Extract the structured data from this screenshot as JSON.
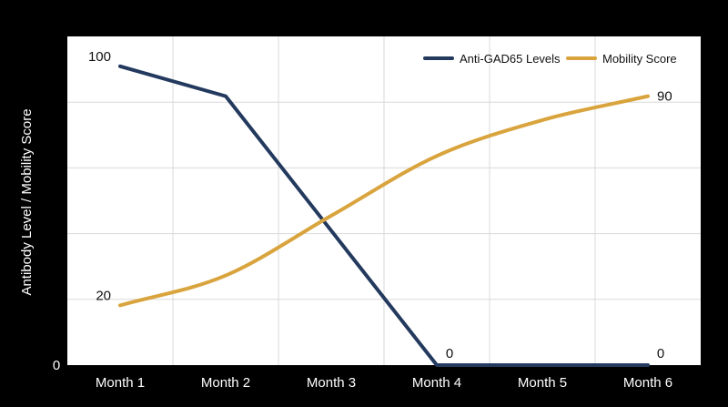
{
  "chart_data": {
    "type": "line",
    "title": "",
    "xlabel": "",
    "ylabel": "Antibody Level / Mobility Score",
    "categories": [
      "Month 1",
      "Month 2",
      "Month 3",
      "Month 4",
      "Month 5",
      "Month 6"
    ],
    "ylim": [
      0,
      110
    ],
    "y_tick_labels": [
      "0"
    ],
    "grid": true,
    "legend_position": "top-right",
    "series": [
      {
        "name": "Anti-GAD65 Levels",
        "values": [
          100,
          90,
          45,
          0,
          0,
          0
        ],
        "color": "#233a5e",
        "point_labels": [
          "100",
          "",
          "",
          "0",
          "",
          "0"
        ]
      },
      {
        "name": "Mobility Score",
        "values": [
          20,
          30,
          50,
          70,
          82,
          90
        ],
        "color": "#d9a43d",
        "point_labels": [
          "20",
          "",
          "",
          "",
          "",
          "90"
        ]
      }
    ],
    "colors": {
      "page_background": "#000000",
      "plot_background": "#ffffff",
      "grid": "#d9d9d9",
      "text": "#111111",
      "axis_title": "#ffffff"
    }
  }
}
